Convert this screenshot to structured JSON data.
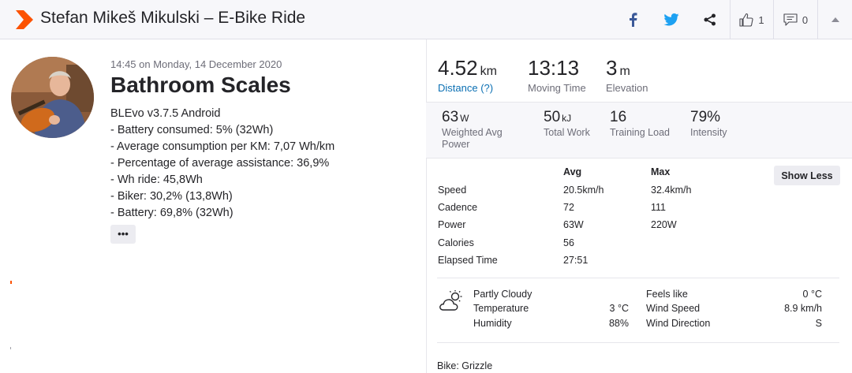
{
  "header": {
    "title": "Stefan Mikeš Mikulski – E-Bike Ride",
    "kudos_count": "1",
    "comments_count": "0",
    "colors": {
      "brand": "#fc5200",
      "facebook": "#3b5998",
      "twitter": "#1da1f2"
    }
  },
  "activity": {
    "datetime": "14:45 on Monday, 14 December 2020",
    "title": "Bathroom Scales",
    "description": [
      "BLEvo v3.7.5 Android",
      "- Battery consumed: 5% (32Wh)",
      "- Average consumption per KM: 7,07 Wh/km",
      "- Percentage of average assistance: 36,9%",
      "- Wh ride: 45,8Wh",
      "- Biker: 30,2% (13,8Wh)",
      "- Battery: 69,8% (32Wh)"
    ],
    "more_label": "•••"
  },
  "primary_stats": [
    {
      "value": "4.52",
      "unit": "km",
      "label": "Distance (?)"
    },
    {
      "value": "13:13",
      "unit": "",
      "label": "Moving Time"
    },
    {
      "value": "3",
      "unit": "m",
      "label": "Elevation"
    }
  ],
  "secondary_stats": [
    {
      "value": "63",
      "unit": "W",
      "label": "Weighted Avg Power"
    },
    {
      "value": "50",
      "unit": "kJ",
      "label": "Total Work"
    },
    {
      "value": "16",
      "unit": "",
      "label": "Training Load"
    },
    {
      "value": "79%",
      "unit": "",
      "label": "Intensity"
    }
  ],
  "details": {
    "show_less_label": "Show Less",
    "col_avg": "Avg",
    "col_max": "Max",
    "rows": [
      {
        "label": "Speed",
        "avg": "20.5km/h",
        "max": "32.4km/h"
      },
      {
        "label": "Cadence",
        "avg": "72",
        "max": "111"
      },
      {
        "label": "Power",
        "avg": "63W",
        "max": "220W"
      },
      {
        "label": "Calories",
        "avg": "56",
        "max": ""
      },
      {
        "label": "Elapsed Time",
        "avg": "27:51",
        "max": ""
      }
    ]
  },
  "weather": {
    "condition": "Partly Cloudy",
    "temperature_label": "Temperature",
    "temperature": "3 °C",
    "humidity_label": "Humidity",
    "humidity": "88%",
    "feels_like_label": "Feels like",
    "feels_like": "0 °C",
    "wind_speed_label": "Wind Speed",
    "wind_speed": "8.9 km/h",
    "wind_direction_label": "Wind Direction",
    "wind_direction": "S"
  },
  "bike": "Bike: Grizzle"
}
